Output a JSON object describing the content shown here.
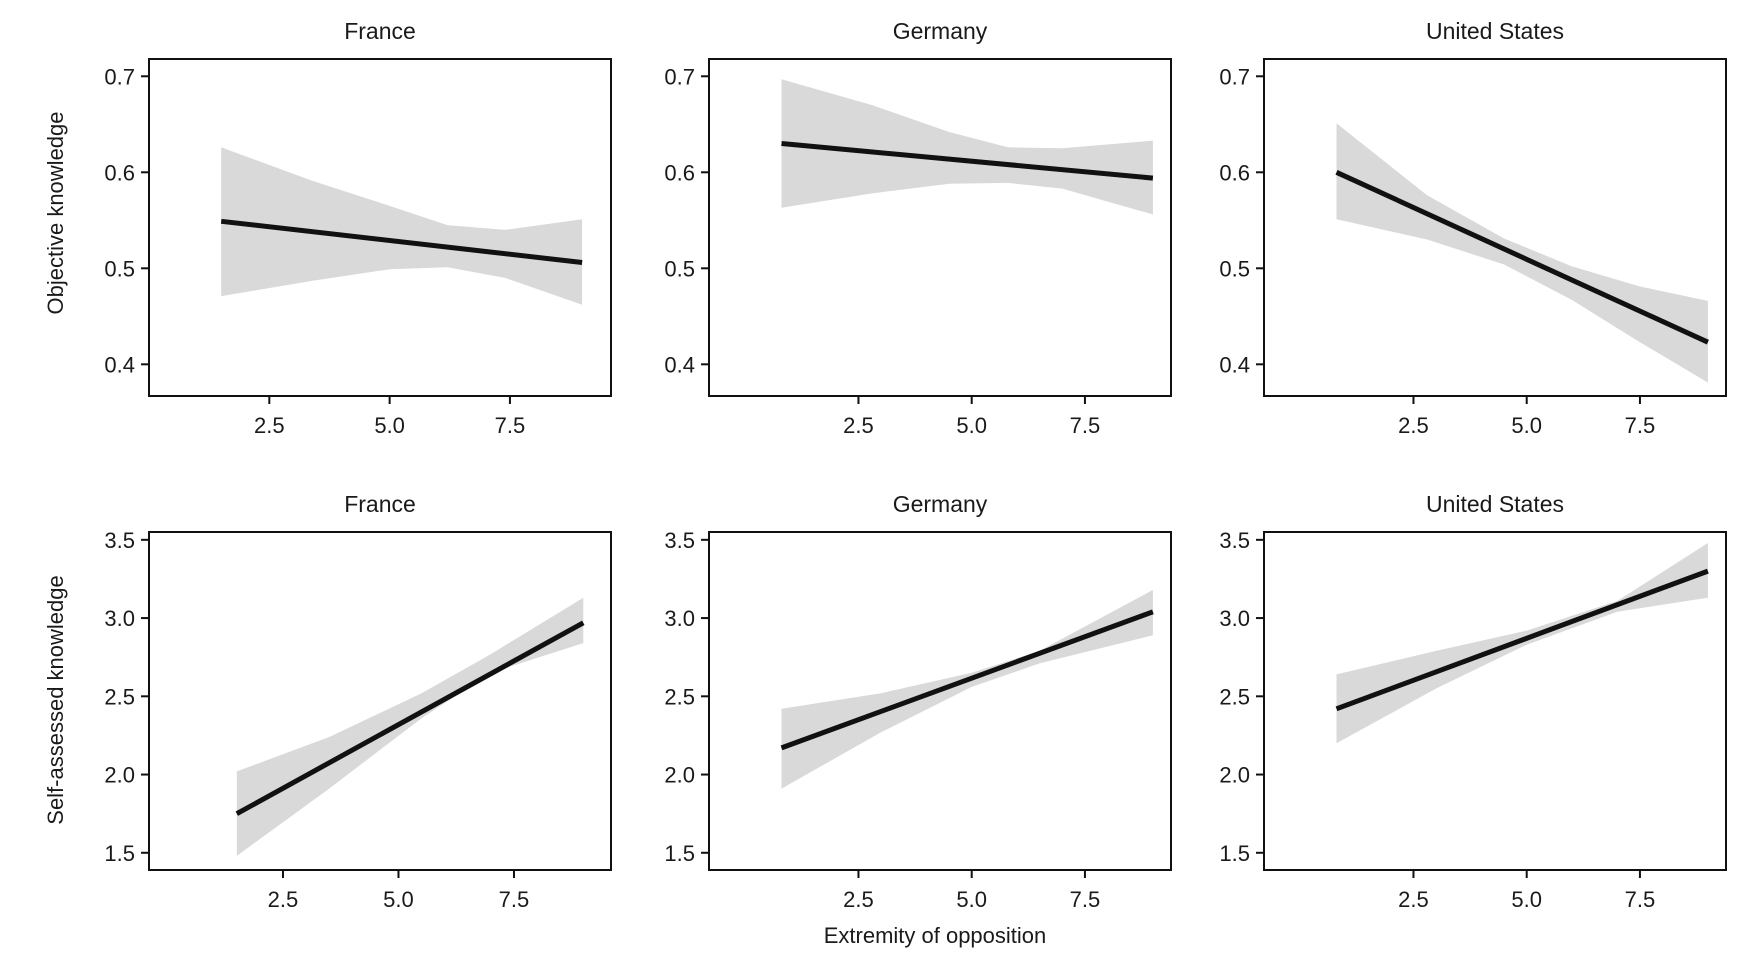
{
  "figure": {
    "xlabel": "Extremity of opposition",
    "row_labels": [
      "Objective knowledge",
      "Self-assessed knowledge"
    ]
  },
  "colors": {
    "line": "#111111",
    "band": "#d9d9d9",
    "axis": "#111111"
  },
  "chart_data": [
    {
      "type": "line",
      "title": "France",
      "ylabel": "Objective knowledge",
      "xlabel": "",
      "xlim": [
        0,
        9.6
      ],
      "ylim": [
        0.367,
        0.718
      ],
      "xticks": [
        "2.5",
        "5.0",
        "7.5"
      ],
      "yticks": [
        "0.4",
        "0.5",
        "0.6",
        "0.7"
      ],
      "grid": false,
      "legend": "none",
      "series": [
        {
          "x": [
            1.5,
            9.0
          ],
          "y": [
            0.549,
            0.506
          ],
          "ci": {
            "x": [
              1.5,
              3.4,
              5.0,
              6.2,
              7.4,
              9.0
            ],
            "lower": [
              0.471,
              0.487,
              0.499,
              0.501,
              0.49,
              0.462
            ],
            "upper": [
              0.626,
              0.591,
              0.565,
              0.545,
              0.54,
              0.551
            ]
          }
        }
      ]
    },
    {
      "type": "line",
      "title": "Germany",
      "ylabel": "",
      "xlabel": "",
      "xlim": [
        -0.8,
        9.4
      ],
      "ylim": [
        0.367,
        0.718
      ],
      "xticks": [
        "2.5",
        "5.0",
        "7.5"
      ],
      "yticks": [
        "0.4",
        "0.5",
        "0.6",
        "0.7"
      ],
      "grid": false,
      "legend": "none",
      "series": [
        {
          "x": [
            0.8,
            9.0
          ],
          "y": [
            0.63,
            0.594
          ],
          "ci": {
            "x": [
              0.8,
              2.8,
              4.5,
              5.8,
              7.0,
              9.0
            ],
            "lower": [
              0.563,
              0.578,
              0.588,
              0.589,
              0.583,
              0.556
            ],
            "upper": [
              0.697,
              0.67,
              0.642,
              0.626,
              0.625,
              0.633
            ]
          }
        }
      ]
    },
    {
      "type": "line",
      "title": "United States",
      "ylabel": "",
      "xlabel": "",
      "xlim": [
        -0.8,
        9.4
      ],
      "ylim": [
        0.367,
        0.718
      ],
      "xticks": [
        "2.5",
        "5.0",
        "7.5"
      ],
      "yticks": [
        "0.4",
        "0.5",
        "0.6",
        "0.7"
      ],
      "grid": false,
      "legend": "none",
      "series": [
        {
          "x": [
            0.8,
            9.0
          ],
          "y": [
            0.6,
            0.423
          ],
          "ci": {
            "x": [
              0.8,
              2.8,
              4.5,
              6.0,
              7.5,
              9.0
            ],
            "lower": [
              0.551,
              0.53,
              0.504,
              0.467,
              0.423,
              0.381
            ],
            "upper": [
              0.651,
              0.576,
              0.531,
              0.502,
              0.481,
              0.466
            ]
          }
        }
      ]
    },
    {
      "type": "line",
      "title": "France",
      "ylabel": "Self-assessed knowledge",
      "xlabel": "",
      "xlim": [
        -0.4,
        9.6
      ],
      "ylim": [
        1.39,
        3.55
      ],
      "xticks": [
        "2.5",
        "5.0",
        "7.5"
      ],
      "yticks": [
        "1.5",
        "2.0",
        "2.5",
        "3.0",
        "3.5"
      ],
      "grid": false,
      "legend": "none",
      "series": [
        {
          "x": [
            1.5,
            9.0
          ],
          "y": [
            1.75,
            2.97
          ],
          "ci": {
            "x": [
              1.5,
              3.5,
              5.5,
              7.0,
              9.0
            ],
            "lower": [
              1.48,
              1.91,
              2.36,
              2.65,
              2.84
            ],
            "upper": [
              2.02,
              2.24,
              2.52,
              2.77,
              3.13
            ]
          }
        }
      ]
    },
    {
      "type": "line",
      "title": "Germany",
      "ylabel": "",
      "xlabel": "Extremity of opposition",
      "xlim": [
        -0.8,
        9.4
      ],
      "ylim": [
        1.39,
        3.55
      ],
      "xticks": [
        "2.5",
        "5.0",
        "7.5"
      ],
      "yticks": [
        "1.5",
        "2.0",
        "2.5",
        "3.0",
        "3.5"
      ],
      "grid": false,
      "legend": "none",
      "series": [
        {
          "x": [
            0.8,
            9.0
          ],
          "y": [
            2.17,
            3.04
          ],
          "ci": {
            "x": [
              0.8,
              3.0,
              5.0,
              6.5,
              9.0
            ],
            "lower": [
              1.91,
              2.27,
              2.56,
              2.71,
              2.89
            ],
            "upper": [
              2.42,
              2.52,
              2.65,
              2.79,
              3.18
            ]
          }
        }
      ]
    },
    {
      "type": "line",
      "title": "United States",
      "ylabel": "",
      "xlabel": "",
      "xlim": [
        -0.8,
        9.4
      ],
      "ylim": [
        1.39,
        3.55
      ],
      "xticks": [
        "2.5",
        "5.0",
        "7.5"
      ],
      "yticks": [
        "1.5",
        "2.0",
        "2.5",
        "3.0",
        "3.5"
      ],
      "grid": false,
      "legend": "none",
      "series": [
        {
          "x": [
            0.8,
            9.0
          ],
          "y": [
            2.42,
            3.3
          ],
          "ci": {
            "x": [
              0.8,
              3.0,
              5.0,
              7.0,
              9.0
            ],
            "lower": [
              2.2,
              2.55,
              2.83,
              3.04,
              3.13
            ],
            "upper": [
              2.64,
              2.79,
              2.92,
              3.11,
              3.48
            ]
          }
        }
      ]
    }
  ]
}
